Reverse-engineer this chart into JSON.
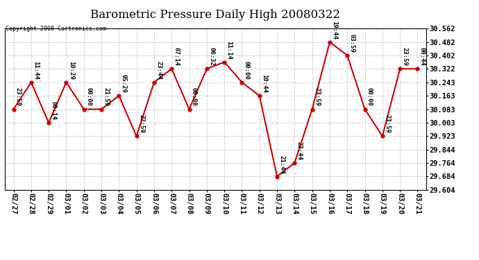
{
  "title": "Barometric Pressure Daily High 20080322",
  "copyright": "Copyright 2008 Cartronics.com",
  "dates": [
    "02/27",
    "02/28",
    "02/29",
    "03/01",
    "03/02",
    "03/03",
    "03/04",
    "03/05",
    "03/06",
    "03/07",
    "03/08",
    "03/09",
    "03/10",
    "03/11",
    "03/12",
    "03/13",
    "03/14",
    "03/15",
    "03/16",
    "03/17",
    "03/18",
    "03/19",
    "03/20",
    "03/21"
  ],
  "values": [
    30.083,
    30.243,
    30.003,
    30.243,
    30.083,
    30.083,
    30.163,
    29.923,
    30.243,
    30.323,
    30.083,
    30.323,
    30.363,
    30.243,
    30.163,
    29.683,
    29.764,
    30.083,
    30.482,
    30.403,
    30.083,
    29.923,
    30.323,
    30.323
  ],
  "labels": [
    "23:59",
    "11:44",
    "00:14",
    "10:29",
    "00:00",
    "21:59",
    "05:29",
    "22:59",
    "23:44",
    "07:14",
    "00:00",
    "06:32",
    "11:14",
    "00:00",
    "10:44",
    "21:44",
    "23:44",
    "23:59",
    "19:44",
    "03:59",
    "00:00",
    "23:59",
    "23:59",
    "00:44"
  ],
  "ylim": [
    29.604,
    30.562
  ],
  "ytick_values": [
    29.604,
    29.684,
    29.764,
    29.844,
    29.923,
    30.003,
    30.083,
    30.163,
    30.243,
    30.322,
    30.402,
    30.482,
    30.562
  ],
  "ytick_labels": [
    "29.604",
    "29.684",
    "29.764",
    "29.844",
    "29.923",
    "30.003",
    "30.083",
    "30.163",
    "30.243",
    "30.322",
    "30.402",
    "30.482",
    "30.562"
  ],
  "line_color": "#cc0000",
  "marker_color": "#cc0000",
  "bg_color": "#ffffff",
  "grid_color": "#c8c8c8",
  "title_fontsize": 12,
  "label_fontsize": 6.5,
  "tick_fontsize": 7.5,
  "copyright_fontsize": 6
}
